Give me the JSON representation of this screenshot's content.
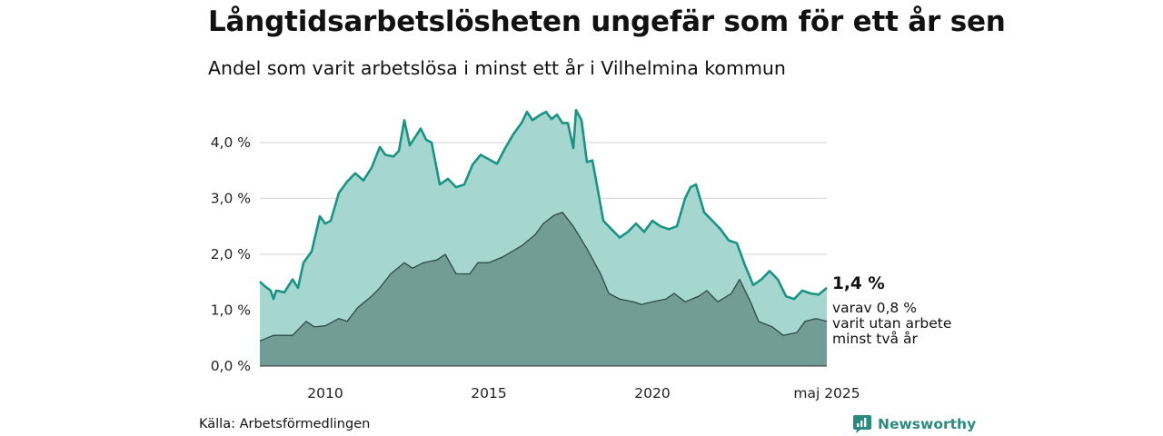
{
  "header": {
    "title": "Långtidsarbetslösheten ungefär som för ett år sen",
    "subtitle": "Andel som varit arbetslösa i minst ett år i Vilhelmina kommun"
  },
  "annotation": {
    "value": "1,4 %",
    "line1": "varav 0,8 %",
    "line2": "varit utan arbete",
    "line3": "minst två år"
  },
  "footer": {
    "source": "Källa: Arbetsförmedlingen",
    "brand": "Newsworthy"
  },
  "colors": {
    "upper_fill": "#a5d6cf",
    "upper_line": "#1b9383",
    "lower_fill": "#729d96",
    "lower_line": "#2e4a45",
    "grid": "#dddddd",
    "brand": "#2b8a7e"
  },
  "chart_data": {
    "type": "area",
    "x_start": "2008-01",
    "x_end": "2025-05",
    "ylim": [
      0,
      4.6
    ],
    "yticks": [
      0,
      1,
      2,
      3,
      4
    ],
    "ytick_labels": [
      "0,0 %",
      "1,0 %",
      "2,0 %",
      "3,0 %",
      "4,0 %"
    ],
    "xticks": [
      {
        "x": "2010-01",
        "label": "2010"
      },
      {
        "x": "2015-01",
        "label": "2015"
      },
      {
        "x": "2020-01",
        "label": "2020"
      },
      {
        "x": "2025-05",
        "label": "maj 2025"
      }
    ],
    "grid": true,
    "series": [
      {
        "points": [
          [
            "2008-01",
            1.51
          ],
          [
            "2008-03",
            1.42
          ],
          [
            "2008-05",
            1.35
          ],
          [
            "2008-06",
            1.2
          ],
          [
            "2008-07",
            1.35
          ],
          [
            "2008-10",
            1.32
          ],
          [
            "2009-01",
            1.55
          ],
          [
            "2009-03",
            1.4
          ],
          [
            "2009-05",
            1.85
          ],
          [
            "2009-08",
            2.05
          ],
          [
            "2009-11",
            2.68
          ],
          [
            "2010-01",
            2.55
          ],
          [
            "2010-03",
            2.6
          ],
          [
            "2010-06",
            3.1
          ],
          [
            "2010-09",
            3.3
          ],
          [
            "2010-12",
            3.45
          ],
          [
            "2011-03",
            3.32
          ],
          [
            "2011-06",
            3.55
          ],
          [
            "2011-09",
            3.92
          ],
          [
            "2011-11",
            3.78
          ],
          [
            "2012-02",
            3.75
          ],
          [
            "2012-04",
            3.85
          ],
          [
            "2012-06",
            4.4
          ],
          [
            "2012-08",
            3.95
          ],
          [
            "2012-10",
            4.1
          ],
          [
            "2012-12",
            4.25
          ],
          [
            "2013-02",
            4.05
          ],
          [
            "2013-04",
            4.0
          ],
          [
            "2013-07",
            3.25
          ],
          [
            "2013-10",
            3.35
          ],
          [
            "2014-01",
            3.2
          ],
          [
            "2014-04",
            3.25
          ],
          [
            "2014-07",
            3.6
          ],
          [
            "2014-10",
            3.78
          ],
          [
            "2015-01",
            3.7
          ],
          [
            "2015-04",
            3.62
          ],
          [
            "2015-07",
            3.9
          ],
          [
            "2015-10",
            4.15
          ],
          [
            "2016-01",
            4.35
          ],
          [
            "2016-03",
            4.55
          ],
          [
            "2016-05",
            4.4
          ],
          [
            "2016-08",
            4.5
          ],
          [
            "2016-10",
            4.55
          ],
          [
            "2016-12",
            4.42
          ],
          [
            "2017-02",
            4.5
          ],
          [
            "2017-04",
            4.35
          ],
          [
            "2017-06",
            4.35
          ],
          [
            "2017-08",
            3.9
          ],
          [
            "2017-09",
            4.58
          ],
          [
            "2017-11",
            4.4
          ],
          [
            "2018-01",
            3.65
          ],
          [
            "2018-03",
            3.68
          ],
          [
            "2018-05",
            3.15
          ],
          [
            "2018-07",
            2.6
          ],
          [
            "2018-10",
            2.45
          ],
          [
            "2019-01",
            2.3
          ],
          [
            "2019-04",
            2.4
          ],
          [
            "2019-07",
            2.55
          ],
          [
            "2019-10",
            2.4
          ],
          [
            "2020-01",
            2.6
          ],
          [
            "2020-04",
            2.5
          ],
          [
            "2020-07",
            2.45
          ],
          [
            "2020-10",
            2.5
          ],
          [
            "2021-01",
            3.0
          ],
          [
            "2021-03",
            3.2
          ],
          [
            "2021-05",
            3.25
          ],
          [
            "2021-08",
            2.75
          ],
          [
            "2021-11",
            2.6
          ],
          [
            "2022-02",
            2.45
          ],
          [
            "2022-05",
            2.25
          ],
          [
            "2022-08",
            2.2
          ],
          [
            "2022-11",
            1.8
          ],
          [
            "2023-02",
            1.45
          ],
          [
            "2023-05",
            1.55
          ],
          [
            "2023-08",
            1.7
          ],
          [
            "2023-11",
            1.55
          ],
          [
            "2024-02",
            1.25
          ],
          [
            "2024-05",
            1.2
          ],
          [
            "2024-08",
            1.35
          ],
          [
            "2024-11",
            1.3
          ],
          [
            "2025-02",
            1.28
          ],
          [
            "2025-05",
            1.4
          ]
        ]
      },
      {
        "points": [
          [
            "2008-01",
            0.45
          ],
          [
            "2008-06",
            0.55
          ],
          [
            "2009-01",
            0.55
          ],
          [
            "2009-06",
            0.8
          ],
          [
            "2009-09",
            0.7
          ],
          [
            "2010-01",
            0.72
          ],
          [
            "2010-06",
            0.85
          ],
          [
            "2010-09",
            0.8
          ],
          [
            "2011-01",
            1.05
          ],
          [
            "2011-06",
            1.25
          ],
          [
            "2011-09",
            1.4
          ],
          [
            "2012-01",
            1.65
          ],
          [
            "2012-06",
            1.85
          ],
          [
            "2012-09",
            1.75
          ],
          [
            "2013-01",
            1.85
          ],
          [
            "2013-06",
            1.9
          ],
          [
            "2013-09",
            2.0
          ],
          [
            "2014-01",
            1.65
          ],
          [
            "2014-06",
            1.65
          ],
          [
            "2014-09",
            1.85
          ],
          [
            "2015-01",
            1.85
          ],
          [
            "2015-06",
            1.95
          ],
          [
            "2016-01",
            2.15
          ],
          [
            "2016-06",
            2.35
          ],
          [
            "2016-09",
            2.55
          ],
          [
            "2017-01",
            2.7
          ],
          [
            "2017-04",
            2.75
          ],
          [
            "2017-08",
            2.5
          ],
          [
            "2018-01",
            2.1
          ],
          [
            "2018-06",
            1.65
          ],
          [
            "2018-09",
            1.3
          ],
          [
            "2019-01",
            1.2
          ],
          [
            "2019-06",
            1.15
          ],
          [
            "2019-09",
            1.1
          ],
          [
            "2020-01",
            1.15
          ],
          [
            "2020-06",
            1.2
          ],
          [
            "2020-09",
            1.3
          ],
          [
            "2021-01",
            1.15
          ],
          [
            "2021-06",
            1.25
          ],
          [
            "2021-09",
            1.35
          ],
          [
            "2022-01",
            1.15
          ],
          [
            "2022-06",
            1.3
          ],
          [
            "2022-09",
            1.55
          ],
          [
            "2023-01",
            1.15
          ],
          [
            "2023-04",
            0.8
          ],
          [
            "2023-09",
            0.7
          ],
          [
            "2024-01",
            0.55
          ],
          [
            "2024-06",
            0.6
          ],
          [
            "2024-09",
            0.8
          ],
          [
            "2025-01",
            0.85
          ],
          [
            "2025-05",
            0.8
          ]
        ]
      }
    ]
  }
}
